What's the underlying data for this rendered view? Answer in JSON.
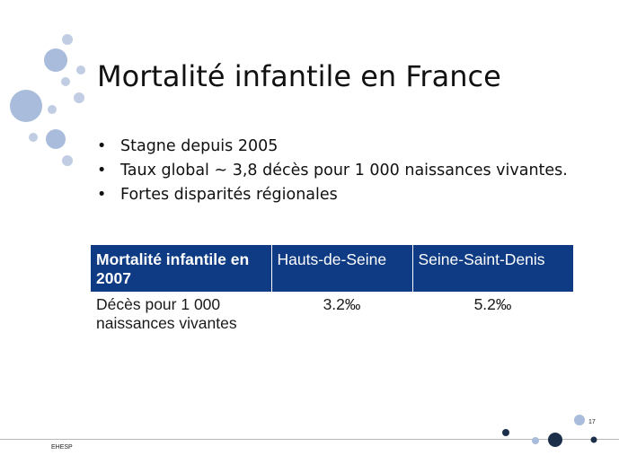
{
  "slide": {
    "title": "Mortalité infantile en France",
    "bullets": [
      "Stagne depuis 2005",
      "Taux global ~ 3,8 décès pour 1 000 naissances vivantes.",
      "Fortes disparités régionales"
    ],
    "table": {
      "headers": [
        "Mortalité infantile en 2007",
        "Hauts-de-Seine",
        "Seine-Saint-Denis"
      ],
      "rows": [
        [
          "Décès pour 1 000 naissances vivantes",
          "3.2‰",
          "5.2‰"
        ]
      ]
    },
    "footer_label": "EHESP",
    "page_number": "17"
  },
  "colors": {
    "header_blue": "#0f3b84",
    "circle_light": "#c0cde3",
    "circle_mid": "#a9bcdb",
    "circle_dark": "#1c2f4a"
  }
}
